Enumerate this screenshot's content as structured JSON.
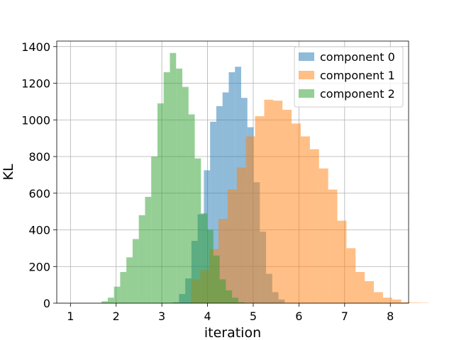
{
  "chart_data": {
    "type": "bar",
    "subtype": "histogram-overlay",
    "xlabel": "iteration",
    "ylabel": "KL",
    "xlim": [
      0.7,
      8.4
    ],
    "ylim": [
      0,
      1430
    ],
    "xticks": [
      "1",
      "2",
      "3",
      "4",
      "5",
      "6",
      "7",
      "8"
    ],
    "yticks": [
      "0",
      "200",
      "400",
      "600",
      "800",
      "1000",
      "1200",
      "1400"
    ],
    "grid": true,
    "legend_position": "top-right",
    "series": [
      {
        "name": "component 0",
        "color": "#1f77b4",
        "opacity": 0.5,
        "bin_start": 3.24,
        "bin_width": 0.136,
        "values": [
          5,
          50,
          135,
          340,
          485,
          725,
          990,
          1075,
          1150,
          1260,
          1290,
          1120,
          960,
          660,
          390,
          160,
          60,
          20
        ]
      },
      {
        "name": "component 1",
        "color": "#ff7f0e",
        "opacity": 0.5,
        "bin_start": 3.64,
        "bin_width": 0.2,
        "values": [
          130,
          180,
          295,
          460,
          620,
          740,
          910,
          1020,
          1110,
          1105,
          1055,
          980,
          910,
          840,
          735,
          620,
          450,
          300,
          170,
          120,
          60,
          30,
          20,
          5,
          3,
          2
        ]
      },
      {
        "name": "component 2",
        "color": "#2ca02c",
        "opacity": 0.5,
        "bin_start": 1.68,
        "bin_width": 0.136,
        "values": [
          10,
          30,
          90,
          170,
          250,
          350,
          480,
          580,
          800,
          1090,
          1260,
          1365,
          1280,
          1180,
          1030,
          790,
          490,
          400,
          260,
          130,
          70,
          30,
          5
        ]
      }
    ]
  }
}
